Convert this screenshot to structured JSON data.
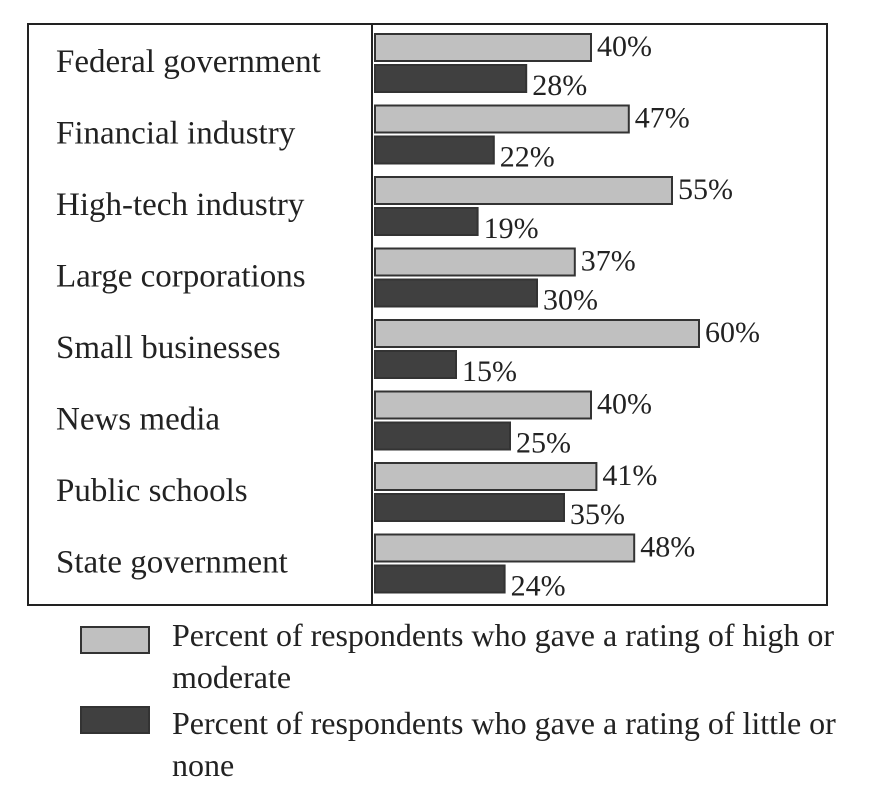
{
  "chart_data": {
    "type": "bar",
    "orientation": "horizontal",
    "categories": [
      "Federal government",
      "Financial industry",
      "High-tech industry",
      "Large corporations",
      "Small businesses",
      "News media",
      "Public schools",
      "State government"
    ],
    "series": [
      {
        "name": "Percent of respondents who gave a rating of high or moderate",
        "color": "#c0c0c0",
        "values": [
          40,
          47,
          55,
          37,
          60,
          40,
          41,
          48
        ],
        "labels": [
          "40%",
          "47%",
          "55%",
          "37%",
          "60%",
          "40%",
          "41%",
          "48%"
        ]
      },
      {
        "name": "Percent of respondents who gave a rating of little or none",
        "color": "#404040",
        "values": [
          28,
          22,
          19,
          30,
          15,
          25,
          35,
          24
        ],
        "labels": [
          "28%",
          "22%",
          "19%",
          "30%",
          "15%",
          "25%",
          "35%",
          "24%"
        ]
      }
    ],
    "xlim": [
      0,
      100
    ],
    "title": "",
    "xlabel": "",
    "ylabel": "",
    "grid": false,
    "legend": "bottom"
  },
  "colors": {
    "light_bar": "#c0c0c0",
    "dark_bar": "#404040",
    "frame": "#222222"
  }
}
